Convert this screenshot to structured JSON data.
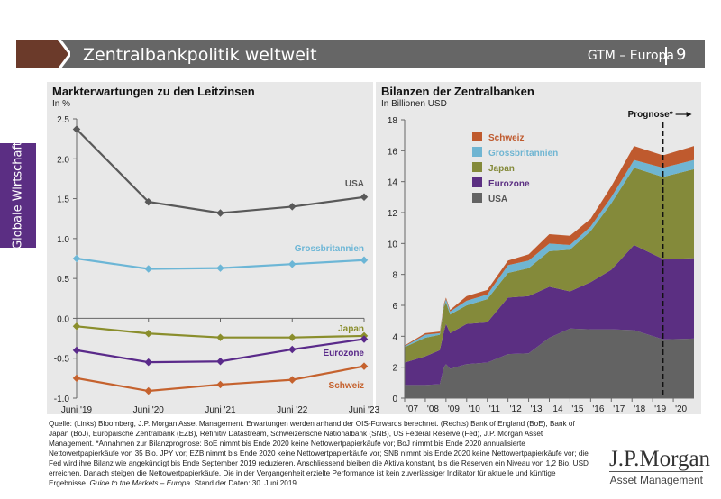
{
  "header": {
    "title": "Zentralbankpolitik weltweit",
    "series": "GTM – Europa",
    "page": "9",
    "brand_color": "#6b3a2a"
  },
  "sidebar": {
    "label": "Globale Wirtschaft",
    "color": "#5b2e83"
  },
  "chart_data": [
    {
      "type": "line",
      "title": "Markterwartungen zu den Leitzinsen",
      "subtitle": "In %",
      "categories": [
        "Juni '19",
        "Juni '20",
        "Juni '21",
        "Juni '22",
        "Juni '23"
      ],
      "ylim": [
        -1.0,
        2.5
      ],
      "yticks": [
        "2.5",
        "2.0",
        "1.5",
        "1.0",
        "0.5",
        "0.0",
        "-0.5",
        "-1.0"
      ],
      "series": [
        {
          "name": "USA",
          "color": "#595959",
          "values": [
            2.37,
            1.46,
            1.32,
            1.4,
            1.52
          ]
        },
        {
          "name": "Grossbritannien",
          "color": "#6cb6d6",
          "values": [
            0.75,
            0.62,
            0.63,
            0.68,
            0.73
          ]
        },
        {
          "name": "Japan",
          "color": "#8a8e2c",
          "values": [
            -0.1,
            -0.19,
            -0.24,
            -0.24,
            -0.22
          ]
        },
        {
          "name": "Eurozone",
          "color": "#5a2a8a",
          "values": [
            -0.4,
            -0.55,
            -0.54,
            -0.39,
            -0.26
          ]
        },
        {
          "name": "Schweiz",
          "color": "#c5622e",
          "values": [
            -0.75,
            -0.91,
            -0.83,
            -0.77,
            -0.6
          ]
        }
      ],
      "grid": false
    },
    {
      "type": "area",
      "stacked": true,
      "title": "Bilanzen der Zentralbanken",
      "subtitle": "In Billionen USD",
      "ylim": [
        0,
        18
      ],
      "yticks": [
        "0",
        "2",
        "4",
        "6",
        "8",
        "10",
        "12",
        "14",
        "16",
        "18"
      ],
      "xlim": [
        2007,
        2021
      ],
      "xticks": [
        "'07",
        "'08",
        "'09",
        "'10",
        "'11",
        "'12",
        "'13",
        "'14",
        "'15",
        "'16",
        "'17",
        "'18",
        "'19",
        "'20"
      ],
      "forecast_start": 2019.5,
      "forecast_label": "Prognose*",
      "x": [
        2007,
        2008,
        2008.7,
        2008.9,
        2009,
        2009.2,
        2010,
        2011,
        2012,
        2013,
        2014,
        2015,
        2016,
        2017,
        2018.1,
        2019.5,
        2021
      ],
      "series": [
        {
          "name": "USA",
          "color": "#636363",
          "values": [
            0.85,
            0.85,
            0.9,
            2.0,
            2.2,
            1.9,
            2.2,
            2.3,
            2.85,
            2.9,
            3.9,
            4.5,
            4.45,
            4.45,
            4.4,
            3.8,
            3.85
          ]
        },
        {
          "name": "Eurozone",
          "color": "#5b2f82",
          "values": [
            1.45,
            1.85,
            2.2,
            2.3,
            2.6,
            2.3,
            2.6,
            2.6,
            3.65,
            3.7,
            3.3,
            2.4,
            3.05,
            3.85,
            5.5,
            5.2,
            5.2
          ]
        },
        {
          "name": "Japan",
          "color": "#848a3a",
          "values": [
            1.0,
            1.2,
            1.0,
            1.6,
            1.4,
            1.2,
            1.2,
            1.5,
            1.6,
            1.8,
            2.3,
            2.7,
            3.3,
            4.3,
            5.0,
            5.3,
            5.75
          ]
        },
        {
          "name": "Grossbritannien",
          "color": "#6fb5d2",
          "values": [
            0.05,
            0.2,
            0.1,
            0.1,
            0.2,
            0.2,
            0.3,
            0.3,
            0.5,
            0.5,
            0.5,
            0.3,
            0.3,
            0.4,
            0.5,
            0.6,
            0.6
          ]
        },
        {
          "name": "Schweiz",
          "color": "#bf5a2e",
          "values": [
            0.05,
            0.1,
            0.1,
            0.1,
            0.1,
            0.1,
            0.3,
            0.3,
            0.3,
            0.4,
            0.6,
            0.6,
            0.5,
            0.7,
            0.9,
            0.8,
            0.9
          ]
        }
      ],
      "legend_order": [
        "Schweiz",
        "Grossbritannien",
        "Japan",
        "Eurozone",
        "USA"
      ],
      "legend_placement": "top-left"
    }
  ],
  "footer": {
    "text": "Quelle: (Links) Bloomberg, J.P. Morgan Asset Management. Erwartungen werden anhand der OIS-Forwards berechnet. (Rechts) Bank of England (BoE), Bank of Japan (BoJ), Europäische Zentralbank (EZB), Refinitiv Datastream, Schweizerische Nationalbank (SNB), US Federal Reserve (Fed), J.P. Morgan Asset Management. *Annahmen zur Bilanzprognose: BoE nimmt bis Ende 2020 keine Nettowertpapierkäufe vor; BoJ nimmt bis Ende 2020 annualisierte Nettowertpapierkäufe von 35 Bio. JPY vor; EZB nimmt bis Ende 2020 keine Nettowertpapierkäufe vor; SNB nimmt bis Ende 2020 keine Nettowertpapierkäufe vor; die Fed wird ihre Bilanz wie angekündigt bis Ende September 2019 reduzieren. Anschliessend bleiben die Aktiva konstant, bis die Reserven ein Niveau von 1,2 Bio. USD erreichen. Danach steigen die Nettowertpapierkäufe. Die in der Vergangenheit erzielte Performance ist kein zuverlässiger Indikator für aktuelle und künftige Ergebnisse.",
    "guide": "Guide to the Markets – Europa.",
    "date": "Stand der Daten: 30. Juni 2019."
  },
  "logo": {
    "name": "J.P.Morgan",
    "sub": "Asset Management"
  }
}
